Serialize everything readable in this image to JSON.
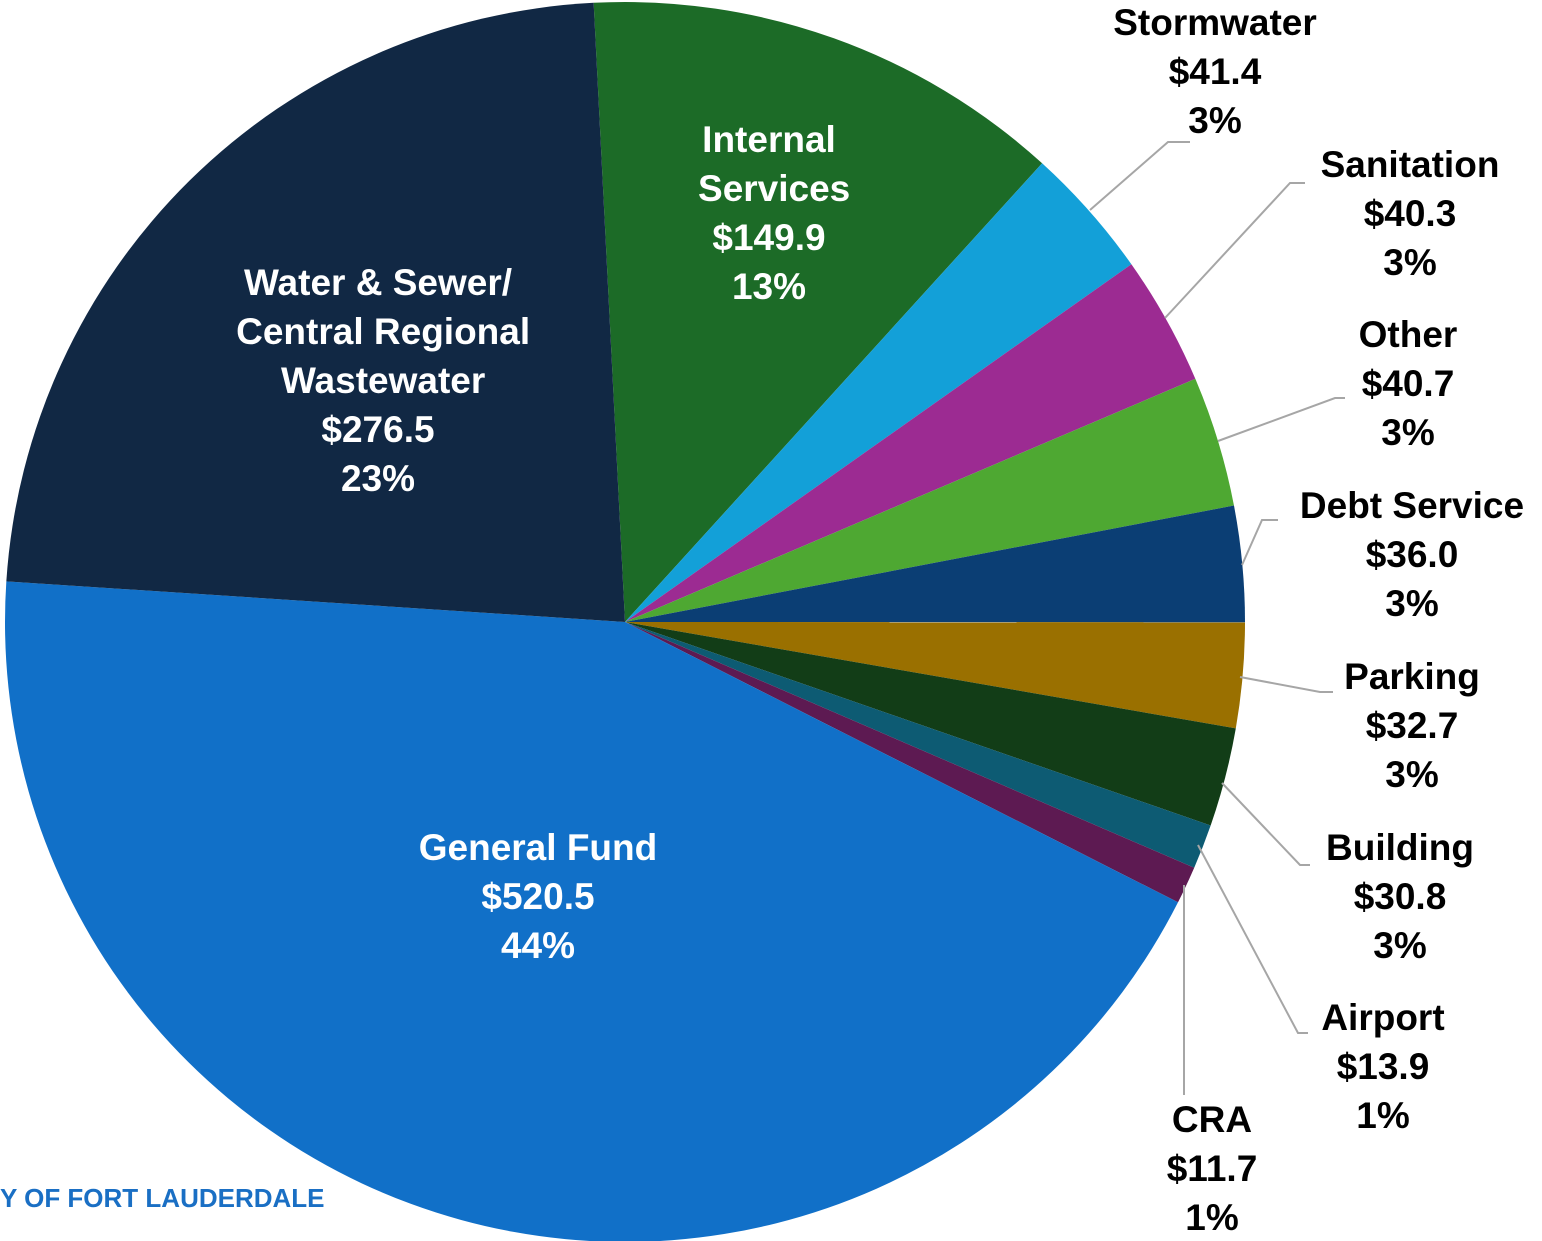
{
  "chart_data": {
    "type": "pie",
    "categories": [
      "Internal Services",
      "Stormwater",
      "Sanitation",
      "Other",
      "Debt Service",
      "Parking",
      "Building",
      "Airport",
      "CRA",
      "General Fund",
      "Water & Sewer/ Central Regional Wastewater"
    ],
    "values": [
      149.9,
      41.4,
      40.3,
      40.7,
      36.0,
      32.7,
      30.8,
      13.9,
      11.7,
      520.5,
      276.5
    ],
    "value_labels": [
      "$149.9",
      "$41.4",
      "$40.3",
      "$40.7",
      "$36.0",
      "$32.7",
      "$30.8",
      "$13.9",
      "$11.7",
      "$520.5",
      "$276.5"
    ],
    "percent_labels": [
      "13%",
      "3%",
      "3%",
      "3%",
      "3%",
      "3%",
      "3%",
      "1%",
      "1%",
      "44%",
      "23%"
    ],
    "colors": [
      "#1c6b27",
      "#13a0d8",
      "#9c2b92",
      "#4ea832",
      "#0b3e74",
      "#9a7000",
      "#123d17",
      "#0d5b73",
      "#5d1a52",
      "#1170c8",
      "#112844"
    ],
    "footer": "Y OF FORT LAUDERDALE"
  }
}
